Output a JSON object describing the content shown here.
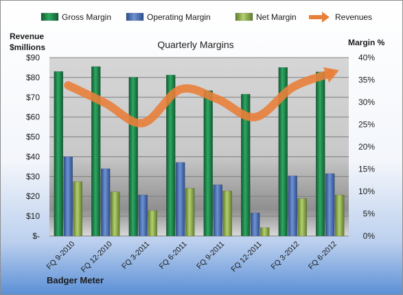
{
  "chart_data": {
    "type": "bar",
    "title": "Quarterly Margins",
    "footer": "Badger Meter",
    "left_axis_title_line1": "Revenue",
    "left_axis_title_line2": "$millions",
    "right_axis_title": "Margin %",
    "categories": [
      "FQ 9-2010",
      "FQ 12-2010",
      "FQ 3-2011",
      "FQ 6-2011",
      "FQ 9-2011",
      "FQ 12-2011",
      "FQ 3-2012",
      "FQ 6-2012"
    ],
    "left_axis": {
      "ylim": [
        0,
        90
      ],
      "ticks": [
        0,
        10,
        20,
        30,
        40,
        50,
        60,
        70,
        80,
        90
      ],
      "tick_labels": [
        "$-",
        "$10",
        "$20",
        "$30",
        "$40",
        "$50",
        "$60",
        "$70",
        "$80",
        "$90"
      ]
    },
    "right_axis": {
      "ylim": [
        0,
        40
      ],
      "ticks": [
        0,
        5,
        10,
        15,
        20,
        25,
        30,
        35,
        40
      ],
      "tick_labels": [
        "0%",
        "5%",
        "10%",
        "15%",
        "20%",
        "25%",
        "30%",
        "35%",
        "40%"
      ]
    },
    "series": [
      {
        "name": "Gross Margin",
        "axis": "right",
        "kind": "bar",
        "color": "#1f8a4c",
        "values": [
          36.9,
          38.0,
          35.6,
          36.1,
          32.6,
          31.8,
          37.8,
          36.8
        ]
      },
      {
        "name": "Operating Margin",
        "axis": "right",
        "kind": "bar",
        "color": "#4f74b8",
        "values": [
          17.8,
          15.1,
          9.2,
          16.5,
          11.5,
          5.2,
          13.5,
          14.0
        ]
      },
      {
        "name": "Net Margin",
        "axis": "right",
        "kind": "bar",
        "color": "#9bbb59",
        "values": [
          12.2,
          9.9,
          5.7,
          10.7,
          10.1,
          1.9,
          8.4,
          9.2
        ]
      },
      {
        "name": "Revenues",
        "axis": "left",
        "kind": "line",
        "color": "#e8803a",
        "values": [
          76,
          67,
          57,
          74,
          69,
          60,
          75,
          82
        ]
      }
    ],
    "legend_position": "top",
    "grid": true
  }
}
